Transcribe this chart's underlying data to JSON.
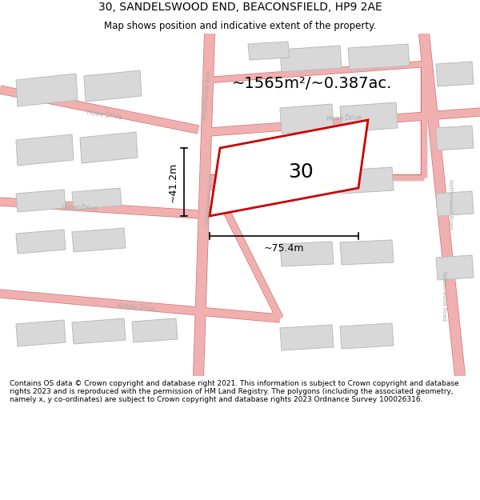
{
  "title": "30, SANDELSWOOD END, BEACONSFIELD, HP9 2AE",
  "subtitle": "Map shows position and indicative extent of the property.",
  "footer": "Contains OS data © Crown copyright and database right 2021. This information is subject to Crown copyright and database rights 2023 and is reproduced with the permission of HM Land Registry. The polygons (including the associated geometry, namely x, y co-ordinates) are subject to Crown copyright and database rights 2023 Ordnance Survey 100026316.",
  "area_label": "~1565m²/~0.387ac.",
  "plot_number": "30",
  "dim_width": "~75.4m",
  "dim_height": "~41.2m",
  "bg_color": "#ffffff",
  "map_bg": "#ffffff",
  "plot_fill": "#ffffff",
  "plot_edge": "#cc0000",
  "road_color": "#f0b0b0",
  "road_line_color": "#d47070",
  "building_color": "#d8d8d8",
  "building_edge": "#bbbbbb",
  "road_label_color": "#aaaaaa",
  "title_fontsize": 10,
  "subtitle_fontsize": 8.5,
  "area_fontsize": 14,
  "dim_fontsize": 9,
  "plot_label_fontsize": 18,
  "footer_fontsize": 6.5
}
